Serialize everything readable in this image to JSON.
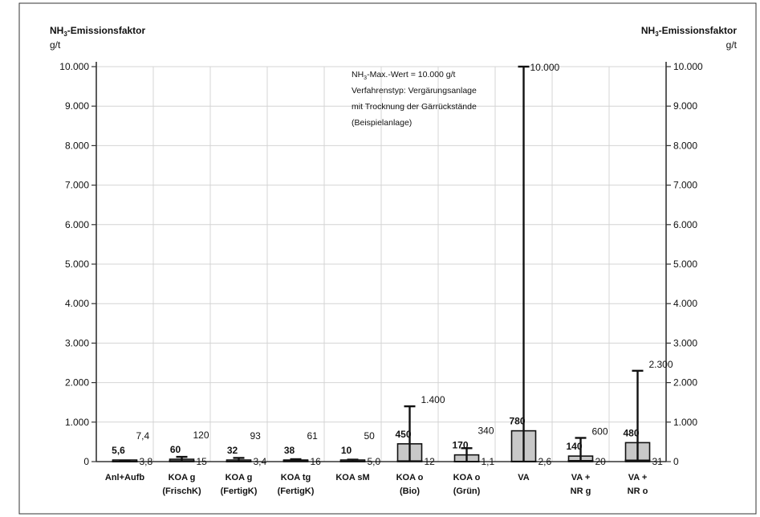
{
  "chart_data": {
    "type": "bar",
    "y_axis_left_title": "NH₃-Emissionsfaktor",
    "y_axis_left_unit": "g/t",
    "y_axis_right_title": "NH₃-Emissionsfaktor",
    "y_axis_right_unit": "g/t",
    "ylim": [
      0,
      10000
    ],
    "yticks": [
      0,
      1000,
      2000,
      3000,
      4000,
      5000,
      6000,
      7000,
      8000,
      9000,
      10000
    ],
    "ytick_labels": [
      "0",
      "1.000",
      "2.000",
      "3.000",
      "4.000",
      "5.000",
      "6.000",
      "7.000",
      "8.000",
      "9.000",
      "10.000"
    ],
    "grid": true,
    "annotation": [
      "NH₃-Max.-Wert = 10.000 g/t",
      "Verfahrenstyp: Vergärungsanlage",
      "mit Trocknung der Gärrückstände",
      "(Beispielanlage)"
    ],
    "categories": [
      {
        "line1": "Anl+Aufb",
        "line2": "",
        "value": 5.6,
        "value_label": "5,6",
        "min": 3.8,
        "min_label": "3,8",
        "max": 7.4,
        "max_label": "7,4"
      },
      {
        "line1": "KOA g",
        "line2": "(FrischK)",
        "value": 60,
        "value_label": "60",
        "min": 15,
        "min_label": "15",
        "max": 120,
        "max_label": "120"
      },
      {
        "line1": "KOA g",
        "line2": "(FertigK)",
        "value": 32,
        "value_label": "32",
        "min": 3.4,
        "min_label": "3,4",
        "max": 93,
        "max_label": "93"
      },
      {
        "line1": "KOA tg",
        "line2": "(FertigK)",
        "value": 38,
        "value_label": "38",
        "min": 16,
        "min_label": "16",
        "max": 61,
        "max_label": "61"
      },
      {
        "line1": "KOA sM",
        "line2": "",
        "value": 10,
        "value_label": "10",
        "min": 5.0,
        "min_label": "5,0",
        "max": 50,
        "max_label": "50"
      },
      {
        "line1": "KOA o",
        "line2": "(Bio)",
        "value": 450,
        "value_label": "450",
        "min": 12,
        "min_label": "12",
        "max": 1400,
        "max_label": "1.400"
      },
      {
        "line1": "KOA o",
        "line2": "(Grün)",
        "value": 170,
        "value_label": "170",
        "min": 1.1,
        "min_label": "1,1",
        "max": 340,
        "max_label": "340"
      },
      {
        "line1": "VA",
        "line2": "",
        "value": 780,
        "value_label": "780",
        "min": 2.6,
        "min_label": "2,6",
        "max": 10000,
        "max_label": "10.000"
      },
      {
        "line1": "VA +",
        "line2": "NR g",
        "value": 140,
        "value_label": "140",
        "min": 20,
        "min_label": "20",
        "max": 600,
        "max_label": "600"
      },
      {
        "line1": "VA +",
        "line2": "NR o",
        "value": 480,
        "value_label": "480",
        "min": 31,
        "min_label": "31",
        "max": 2300,
        "max_label": "2.300"
      }
    ],
    "colors": {
      "bar_fill": "#c8c8c8",
      "bar_stroke": "#111111",
      "grid": "#d4d4d4",
      "frame": "#333333"
    }
  }
}
